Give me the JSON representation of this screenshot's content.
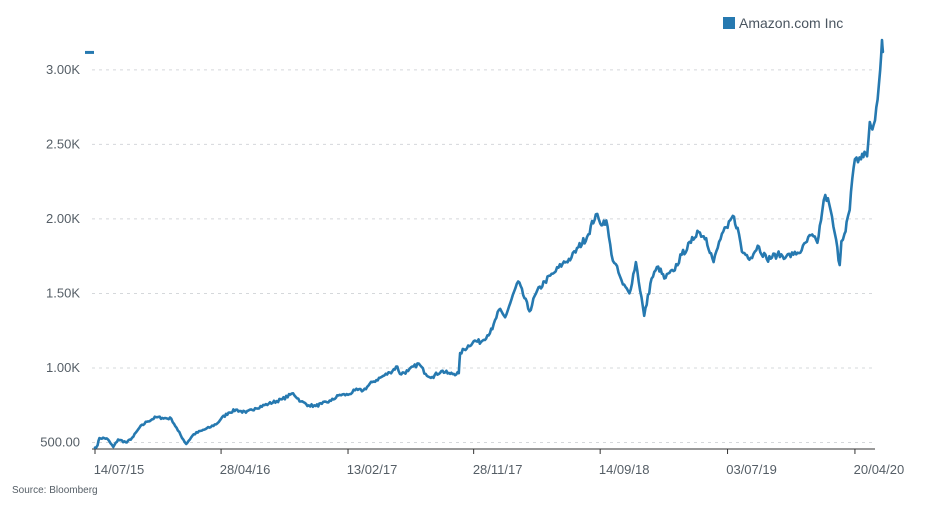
{
  "chart_data": {
    "type": "line",
    "title": "",
    "xlabel": "",
    "ylabel": "",
    "source": "Source: Bloomberg",
    "grid": true,
    "legend_position": "top-right",
    "x_range": [
      "2015-07-14",
      "2020-06-05"
    ],
    "ylim": [
      470,
      3200
    ],
    "x_ticks": [
      {
        "date": "2015-07-14",
        "label": "14/07/15"
      },
      {
        "date": "2016-04-28",
        "label": "28/04/16"
      },
      {
        "date": "2017-02-13",
        "label": "13/02/17"
      },
      {
        "date": "2017-11-28",
        "label": "28/11/17"
      },
      {
        "date": "2018-09-14",
        "label": "14/09/18"
      },
      {
        "date": "2019-07-03",
        "label": "03/07/19"
      },
      {
        "date": "2020-04-20",
        "label": "20/04/20"
      }
    ],
    "y_ticks": [
      {
        "value": 500,
        "label": "500.00"
      },
      {
        "value": 1000,
        "label": "1.00K"
      },
      {
        "value": 1500,
        "label": "1.50K"
      },
      {
        "value": 2000,
        "label": "2.00K"
      },
      {
        "value": 2500,
        "label": "2.50K"
      },
      {
        "value": 3000,
        "label": "3.00K"
      }
    ],
    "series": [
      {
        "name": "Amazon.com Inc",
        "color": "#2679b0",
        "points": [
          [
            "2015-07-14",
            465
          ],
          [
            "2015-07-20",
            482
          ],
          [
            "2015-07-24",
            530
          ],
          [
            "2015-08-10",
            528
          ],
          [
            "2015-08-25",
            470
          ],
          [
            "2015-09-05",
            520
          ],
          [
            "2015-09-25",
            500
          ],
          [
            "2015-10-10",
            540
          ],
          [
            "2015-10-24",
            600
          ],
          [
            "2015-11-10",
            640
          ],
          [
            "2015-12-01",
            670
          ],
          [
            "2015-12-15",
            665
          ],
          [
            "2016-01-05",
            660
          ],
          [
            "2016-01-20",
            580
          ],
          [
            "2016-02-08",
            490
          ],
          [
            "2016-02-25",
            555
          ],
          [
            "2016-03-15",
            580
          ],
          [
            "2016-04-01",
            600
          ],
          [
            "2016-04-20",
            630
          ],
          [
            "2016-04-28",
            660
          ],
          [
            "2016-05-15",
            700
          ],
          [
            "2016-06-01",
            720
          ],
          [
            "2016-06-24",
            700
          ],
          [
            "2016-07-15",
            730
          ],
          [
            "2016-08-15",
            760
          ],
          [
            "2016-09-15",
            790
          ],
          [
            "2016-10-10",
            830
          ],
          [
            "2016-10-28",
            775
          ],
          [
            "2016-11-15",
            750
          ],
          [
            "2016-12-01",
            745
          ],
          [
            "2016-12-15",
            760
          ],
          [
            "2017-01-05",
            780
          ],
          [
            "2017-01-25",
            820
          ],
          [
            "2017-02-13",
            820
          ],
          [
            "2017-03-01",
            850
          ],
          [
            "2017-03-20",
            850
          ],
          [
            "2017-04-10",
            905
          ],
          [
            "2017-05-01",
            940
          ],
          [
            "2017-05-20",
            970
          ],
          [
            "2017-06-06",
            1010
          ],
          [
            "2017-06-12",
            960
          ],
          [
            "2017-07-01",
            980
          ],
          [
            "2017-07-25",
            1030
          ],
          [
            "2017-08-10",
            960
          ],
          [
            "2017-08-25",
            940
          ],
          [
            "2017-09-15",
            980
          ],
          [
            "2017-10-05",
            960
          ],
          [
            "2017-10-25",
            965
          ],
          [
            "2017-10-28",
            1100
          ],
          [
            "2017-11-28",
            1180
          ],
          [
            "2017-12-15",
            1175
          ],
          [
            "2018-01-10",
            1260
          ],
          [
            "2018-01-25",
            1390
          ],
          [
            "2018-02-08",
            1340
          ],
          [
            "2018-03-10",
            1580
          ],
          [
            "2018-04-05",
            1380
          ],
          [
            "2018-04-20",
            1500
          ],
          [
            "2018-05-10",
            1580
          ],
          [
            "2018-06-01",
            1640
          ],
          [
            "2018-06-20",
            1700
          ],
          [
            "2018-07-10",
            1740
          ],
          [
            "2018-07-26",
            1810
          ],
          [
            "2018-08-15",
            1880
          ],
          [
            "2018-09-04",
            2030
          ],
          [
            "2018-09-14",
            1970
          ],
          [
            "2018-09-28",
            1990
          ],
          [
            "2018-10-10",
            1760
          ],
          [
            "2018-10-26",
            1640
          ],
          [
            "2018-11-05",
            1560
          ],
          [
            "2018-11-20",
            1500
          ],
          [
            "2018-12-05",
            1710
          ],
          [
            "2018-12-24",
            1350
          ],
          [
            "2019-01-10",
            1600
          ],
          [
            "2019-01-25",
            1680
          ],
          [
            "2019-02-08",
            1600
          ],
          [
            "2019-03-01",
            1650
          ],
          [
            "2019-03-20",
            1760
          ],
          [
            "2019-04-10",
            1840
          ],
          [
            "2019-04-25",
            1920
          ],
          [
            "2019-05-15",
            1870
          ],
          [
            "2019-06-01",
            1710
          ],
          [
            "2019-06-20",
            1900
          ],
          [
            "2019-07-03",
            1940
          ],
          [
            "2019-07-15",
            2020
          ],
          [
            "2019-07-26",
            1940
          ],
          [
            "2019-08-05",
            1780
          ],
          [
            "2019-08-25",
            1740
          ],
          [
            "2019-09-10",
            1820
          ],
          [
            "2019-10-01",
            1730
          ],
          [
            "2019-10-25",
            1760
          ],
          [
            "2019-11-15",
            1750
          ],
          [
            "2019-12-01",
            1760
          ],
          [
            "2019-12-20",
            1790
          ],
          [
            "2020-01-10",
            1890
          ],
          [
            "2020-01-25",
            1840
          ],
          [
            "2020-02-05",
            2050
          ],
          [
            "2020-02-12",
            2160
          ],
          [
            "2020-02-21",
            2100
          ],
          [
            "2020-03-05",
            1900
          ],
          [
            "2020-03-16",
            1690
          ],
          [
            "2020-03-20",
            1850
          ],
          [
            "2020-03-27",
            1900
          ],
          [
            "2020-04-01",
            1980
          ],
          [
            "2020-04-08",
            2060
          ],
          [
            "2020-04-14",
            2270
          ],
          [
            "2020-04-20",
            2400
          ],
          [
            "2020-04-27",
            2380
          ],
          [
            "2020-05-04",
            2400
          ],
          [
            "2020-05-12",
            2450
          ],
          [
            "2020-05-18",
            2420
          ],
          [
            "2020-05-24",
            2650
          ],
          [
            "2020-05-30",
            2600
          ],
          [
            "2020-06-05",
            2660
          ],
          [
            "2020-06-11",
            2800
          ],
          [
            "2020-06-17",
            3000
          ],
          [
            "2020-06-21",
            3200
          ],
          [
            "2020-06-23",
            3120
          ]
        ]
      }
    ]
  }
}
